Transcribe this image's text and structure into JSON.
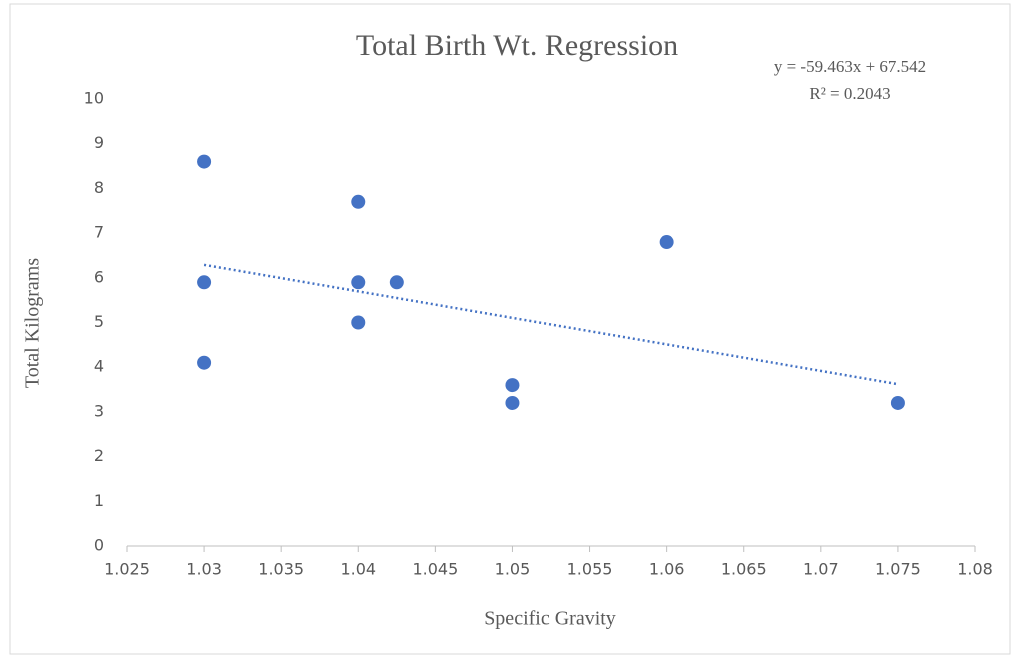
{
  "chart_data": {
    "type": "scatter",
    "title": "Total Birth Wt. Regression",
    "x_label": "Specific Gravity",
    "y_label": "Total Kilograms",
    "equation": "y = -59.463x + 67.542",
    "r_squared": "R² = 0.2043",
    "series": [
      {
        "color": "#4472c4",
        "x": [
          1.03,
          1.03,
          1.03,
          1.04,
          1.04,
          1.04,
          1.0425,
          1.05,
          1.05,
          1.06,
          1.075
        ],
        "values": [
          8.6,
          5.9,
          4.1,
          7.7,
          5.9,
          5.0,
          5.9,
          3.6,
          3.2,
          6.8,
          3.2
        ]
      }
    ],
    "trendline": {
      "color": "#4472c4",
      "x": [
        1.03,
        1.075
      ],
      "values": [
        6.29,
        3.62
      ]
    },
    "xlim": [
      1.025,
      1.08
    ],
    "xticks": [
      1.025,
      1.03,
      1.035,
      1.04,
      1.045,
      1.05,
      1.055,
      1.06,
      1.065,
      1.07,
      1.075,
      1.08
    ],
    "ylim": [
      0,
      10
    ],
    "yticks": [
      0,
      1,
      2,
      3,
      4,
      5,
      6,
      7,
      8,
      9,
      10
    ]
  }
}
